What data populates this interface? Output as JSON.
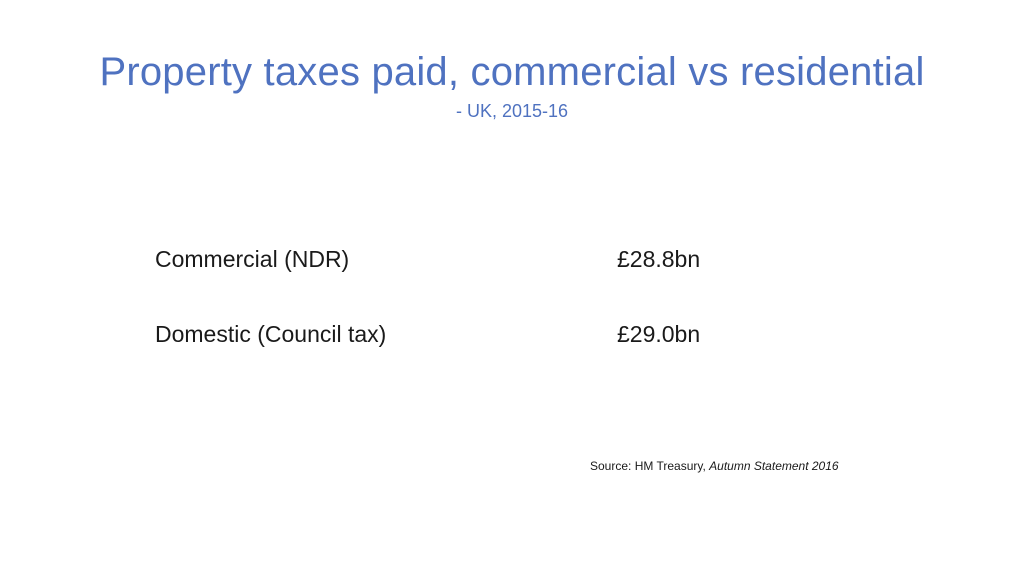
{
  "slide": {
    "title": "Property taxes paid, commercial vs residential",
    "subtitle": "- UK, 2015-16",
    "rows": [
      {
        "label": "Commercial (NDR)",
        "value": "£28.8bn"
      },
      {
        "label": "Domestic (Council tax)",
        "value": "£29.0bn"
      }
    ],
    "source": {
      "prefix": "Source: HM Treasury, ",
      "publication": "Autumn Statement 2016"
    },
    "colors": {
      "title": "#4f72c0",
      "text": "#1a1a1a",
      "background": "#ffffff"
    }
  }
}
